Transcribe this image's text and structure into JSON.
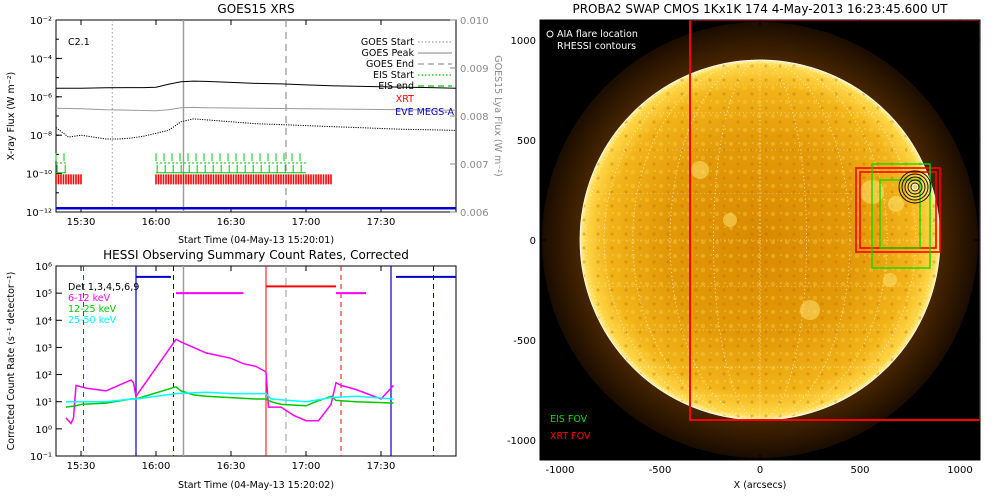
{
  "chart_data": [
    {
      "type": "line",
      "title": "GOES15 XRS",
      "xlabel": "Start Time (04-May-13 15:20:01)",
      "ylabel": "X-ray Flux (W m⁻²)",
      "y2label": "GOES15 Lya Flux (W m⁻²)",
      "x_range_min": [
        0,
        160
      ],
      "x_ticks": [
        {
          "v": 10,
          "label": "15:30"
        },
        {
          "v": 40,
          "label": "16:00"
        },
        {
          "v": 70,
          "label": "16:30"
        },
        {
          "v": 100,
          "label": "17:00"
        },
        {
          "v": 130,
          "label": "17:30"
        }
      ],
      "y_scale": "log",
      "ylim_exp": [
        -12,
        -2
      ],
      "y_ticks": [
        {
          "e": -2,
          "label": "10⁻²"
        },
        {
          "e": -4,
          "label": "10⁻⁴"
        },
        {
          "e": -6,
          "label": "10⁻⁶"
        },
        {
          "e": -8,
          "label": "10⁻⁸"
        },
        {
          "e": -10,
          "label": "10⁻¹⁰"
        },
        {
          "e": -12,
          "label": "10⁻¹²"
        }
      ],
      "y2lim": [
        0.006,
        0.01
      ],
      "y2_ticks": [
        "0.006",
        "0.007",
        "0.008",
        "0.009",
        "0.010"
      ],
      "annotation": "C2.1",
      "legend": [
        {
          "label": "GOES Start",
          "color": "#9a9a9a",
          "style": "dotted"
        },
        {
          "label": "GOES Peak",
          "color": "#9a9a9a",
          "style": "solid"
        },
        {
          "label": "GOES End",
          "color": "#9a9a9a",
          "style": "dashed"
        },
        {
          "label": "EIS Start",
          "color": "#00c800",
          "style": "dotted"
        },
        {
          "label": "EIS end",
          "color": "#00c800",
          "style": "dashed"
        },
        {
          "label": "XRT",
          "color": "#ff0000",
          "style": "text"
        },
        {
          "label": "EVE MEGS-A",
          "color": "#0000cc",
          "style": "text"
        }
      ],
      "vlines_min": {
        "goes_start": 22.5,
        "goes_peak": 51,
        "goes_end": 92
      },
      "series": [
        {
          "key": "long",
          "color": "#000000",
          "x": [
            0,
            10,
            20,
            30,
            35,
            40,
            45,
            50,
            55,
            60,
            70,
            80,
            90,
            100,
            110,
            120,
            130,
            140,
            150,
            160
          ],
          "y_exp": [
            -5.55,
            -5.55,
            -5.53,
            -5.52,
            -5.52,
            -5.5,
            -5.35,
            -5.22,
            -5.18,
            -5.2,
            -5.25,
            -5.3,
            -5.33,
            -5.38,
            -5.42,
            -5.45,
            -5.48,
            -5.5,
            -5.52,
            -5.55
          ]
        },
        {
          "key": "short",
          "color": "#000000",
          "dotted": true,
          "x": [
            0,
            5,
            10,
            15,
            20,
            25,
            30,
            35,
            40,
            45,
            50,
            55,
            60,
            70,
            80,
            90,
            100,
            110,
            120,
            130,
            140,
            150,
            160
          ],
          "y_exp": [
            -7.6,
            -8.1,
            -8.0,
            -8.1,
            -8.2,
            -8.2,
            -8.15,
            -8.05,
            -7.9,
            -7.75,
            -7.3,
            -7.15,
            -7.2,
            -7.3,
            -7.4,
            -7.45,
            -7.5,
            -7.55,
            -7.6,
            -7.65,
            -7.7,
            -7.72,
            -7.75
          ]
        },
        {
          "key": "lya",
          "color": "#9a9a9a",
          "x": [
            0,
            10,
            20,
            30,
            40,
            45,
            50,
            55,
            60,
            80,
            100,
            120,
            140,
            160
          ],
          "y": [
            0.00816,
            0.00815,
            0.00813,
            0.00812,
            0.00811,
            0.00813,
            0.00817,
            0.00818,
            0.00817,
            0.00816,
            0.00815,
            0.00814,
            0.00813,
            0.00812
          ]
        },
        {
          "key": "eve",
          "color": "#0000cc",
          "x": [
            0,
            160
          ],
          "y_exp": [
            -11.8,
            -11.8
          ]
        }
      ],
      "eis_ranges_min": [
        [
          0,
          4
        ],
        [
          40,
          100
        ]
      ],
      "xrt_ranges_min": [
        [
          0,
          10
        ],
        [
          40,
          110
        ]
      ]
    },
    {
      "type": "line",
      "title": "HESSI Observing Summary Count Rates, Corrected",
      "xlabel": "Start Time (04-May-13 15:20:02)",
      "ylabel": "Corrected Count Rate (s⁻¹ detector⁻¹)",
      "x_range_min": [
        0,
        160
      ],
      "x_ticks": [
        {
          "v": 10,
          "label": "15:30"
        },
        {
          "v": 40,
          "label": "16:00"
        },
        {
          "v": 70,
          "label": "16:30"
        },
        {
          "v": 100,
          "label": "17:00"
        },
        {
          "v": 130,
          "label": "17:30"
        }
      ],
      "y_scale": "log",
      "ylim_exp": [
        -1,
        6
      ],
      "y_ticks": [
        {
          "e": -1,
          "label": "10⁻¹"
        },
        {
          "e": 0,
          "label": "10⁰"
        },
        {
          "e": 1,
          "label": "10¹"
        },
        {
          "e": 2,
          "label": "10²"
        },
        {
          "e": 3,
          "label": "10³"
        },
        {
          "e": 4,
          "label": "10⁴"
        },
        {
          "e": 5,
          "label": "10⁵"
        },
        {
          "e": 6,
          "label": "10⁶"
        }
      ],
      "legend": [
        {
          "label": "Det 1,3,4,5,6,9",
          "color": "#000000"
        },
        {
          "label": "6-12 keV",
          "color": "#ff00ff"
        },
        {
          "label": "12-25 keV",
          "color": "#00c800"
        },
        {
          "label": "25-50 keV",
          "color": "#00ffff"
        }
      ],
      "series": [
        {
          "name": "6-12 keV",
          "color": "#ff00ff",
          "x": [
            4,
            6,
            7,
            8,
            12,
            16,
            20,
            25,
            30,
            31,
            32,
            48,
            50,
            55,
            60,
            65,
            70,
            75,
            80,
            84,
            85,
            90,
            95,
            100,
            105,
            110,
            112,
            114,
            120,
            130,
            135
          ],
          "y_exp": [
            0.4,
            0.2,
            0.4,
            1.6,
            1.5,
            1.45,
            1.4,
            1.6,
            1.8,
            1.7,
            1.2,
            3.3,
            3.2,
            3.0,
            2.8,
            2.7,
            2.6,
            2.4,
            2.3,
            2.1,
            0.8,
            0.8,
            0.5,
            0.3,
            0.3,
            0.9,
            1.7,
            1.6,
            1.45,
            1.1,
            1.6
          ]
        },
        {
          "name": "12-25 keV",
          "color": "#00c800",
          "x": [
            4,
            8,
            10,
            20,
            30,
            32,
            48,
            50,
            55,
            60,
            70,
            80,
            84,
            86,
            90,
            100,
            104,
            110,
            112,
            120,
            135
          ],
          "y_exp": [
            0.8,
            0.85,
            0.9,
            0.95,
            1.1,
            1.1,
            1.55,
            1.4,
            1.25,
            1.2,
            1.15,
            1.1,
            1.1,
            1.0,
            0.9,
            0.85,
            1.0,
            1.2,
            1.05,
            1.0,
            0.95
          ]
        },
        {
          "name": "25-50 keV",
          "color": "#00ffff",
          "x": [
            4,
            10,
            20,
            30,
            32,
            48,
            60,
            70,
            80,
            84,
            86,
            100,
            110,
            120,
            135
          ],
          "y_exp": [
            1.0,
            1.0,
            1.0,
            1.1,
            1.1,
            1.3,
            1.35,
            1.3,
            1.3,
            1.3,
            1.1,
            1.0,
            1.15,
            1.2,
            1.1
          ]
        }
      ],
      "attenuator": {
        "color": "#ff0000",
        "x": [
          [
            84,
            112
          ]
        ],
        "y_exp": 5.25
      },
      "attenuator_magenta": {
        "x": [
          [
            48,
            75
          ],
          [
            112,
            124
          ]
        ],
        "y_exp": 5.0
      },
      "night_blue": {
        "x": [
          [
            32,
            46
          ],
          [
            136,
            160
          ]
        ],
        "y_exp": 5.6
      },
      "vlines_min": {
        "red_dash": [
          11,
          114
        ],
        "blue_dash": [
          47,
          151
        ],
        "gray_solid": 51,
        "gray_dash": 92,
        "red_solid": 84,
        "blue_solid": [
          32,
          134
        ]
      }
    },
    {
      "type": "image",
      "title": "PROBA2 SWAP CMOS 1Kx1K 174  4-May-2013 16:23:45.600 UT",
      "xlabel": "X (arcsecs)",
      "xlim": [
        -1100,
        1100
      ],
      "ylim": [
        -1100,
        1100
      ],
      "x_ticks": [
        -1000,
        -500,
        0,
        500,
        1000
      ],
      "y_ticks": [
        -1000,
        -500,
        0,
        500,
        1000
      ],
      "legend": [
        {
          "label": "AIA flare location",
          "color": "#ffffff"
        },
        {
          "label": "RHESSI contours",
          "color": "#ffffff"
        },
        {
          "label": "EIS FOV",
          "color": "#00dd00"
        },
        {
          "label": "XRT FOV",
          "color": "#ff0000"
        }
      ],
      "sun_radius_arcsec": 900,
      "xrt_fov_big": {
        "x": [
          -350,
          1100
        ],
        "y": [
          -900,
          1100
        ]
      },
      "xrt_fov_small": [
        {
          "x": [
            480,
            900
          ],
          "y": [
            -60,
            360
          ]
        },
        {
          "x": [
            500,
            880
          ],
          "y": [
            -40,
            340
          ]
        }
      ],
      "eis_fov": [
        {
          "x": [
            560,
            850
          ],
          "y": [
            -140,
            380
          ]
        },
        {
          "x": [
            600,
            800
          ],
          "y": [
            -40,
            300
          ]
        }
      ],
      "flare_location": {
        "x": 775,
        "y": 265
      },
      "contour_radii": [
        20,
        35,
        50,
        65,
        80
      ]
    }
  ]
}
